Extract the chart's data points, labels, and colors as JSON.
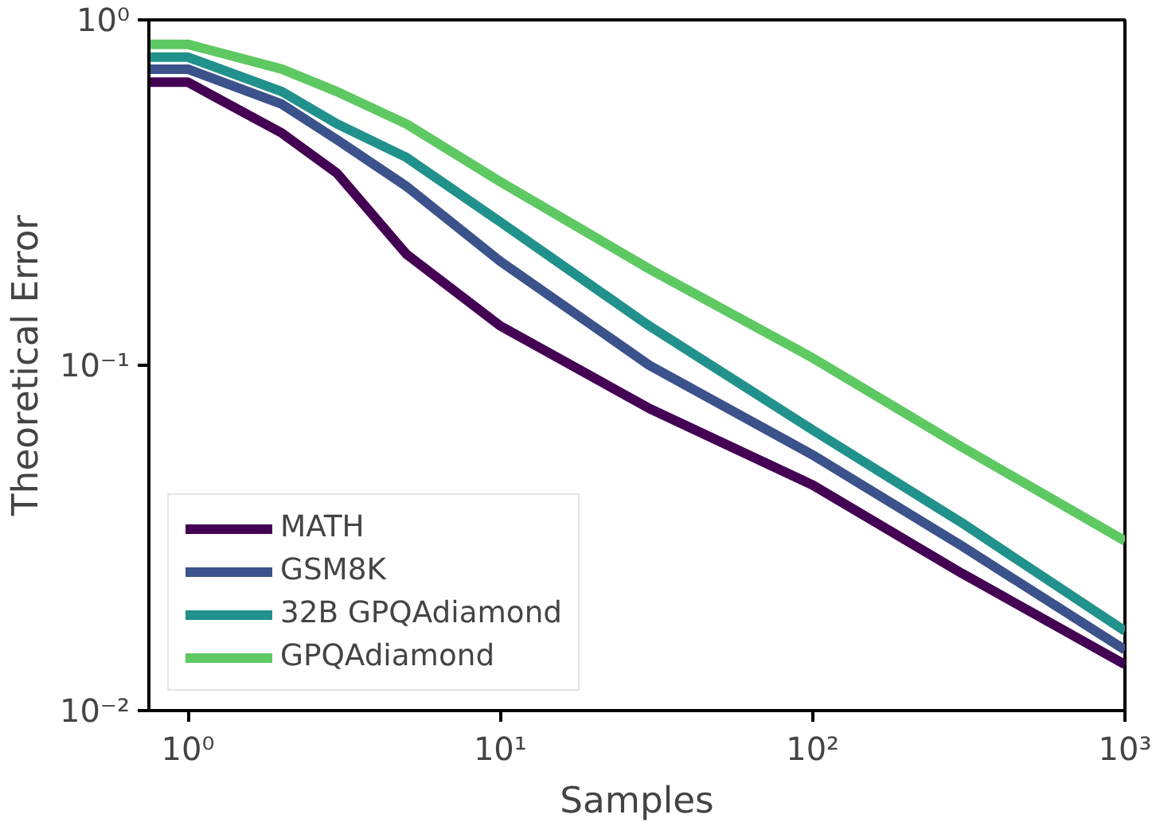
{
  "chart_data": {
    "type": "line",
    "xlabel": "Samples",
    "ylabel": "Theoretical Error",
    "log": "xy",
    "grid": false,
    "legend": "bottom left",
    "xlim": [
      0.75,
      1000
    ],
    "ylim": [
      0.01,
      1
    ],
    "xticks": [
      {
        "value": 1,
        "label": "10⁰"
      },
      {
        "value": 10,
        "label": "10¹"
      },
      {
        "value": 100,
        "label": "10²"
      },
      {
        "value": 1000,
        "label": "10³"
      }
    ],
    "yticks": [
      {
        "value": 0.01,
        "label": "10⁻²"
      },
      {
        "value": 0.1,
        "label": "10⁻¹"
      },
      {
        "value": 1,
        "label": "10⁰"
      }
    ],
    "x": [
      0.75,
      1,
      2,
      3,
      5,
      10,
      30,
      100,
      300,
      1000
    ],
    "series": [
      {
        "name": "MATH",
        "color": "#440154",
        "values": [
          0.66,
          0.66,
          0.47,
          0.36,
          0.21,
          0.13,
          0.075,
          0.045,
          0.025,
          0.0136
        ]
      },
      {
        "name": "GSM8K",
        "color": "#3b528b",
        "values": [
          0.72,
          0.72,
          0.57,
          0.45,
          0.33,
          0.2,
          0.1,
          0.055,
          0.03,
          0.015
        ]
      },
      {
        "name": "32B GPQAdiamond",
        "color": "#21918c",
        "values": [
          0.78,
          0.78,
          0.62,
          0.5,
          0.4,
          0.26,
          0.13,
          0.065,
          0.035,
          0.017
        ]
      },
      {
        "name": "GPQAdiamond",
        "color": "#5ec962",
        "values": [
          0.85,
          0.85,
          0.72,
          0.62,
          0.5,
          0.34,
          0.19,
          0.105,
          0.058,
          0.031
        ]
      }
    ]
  }
}
